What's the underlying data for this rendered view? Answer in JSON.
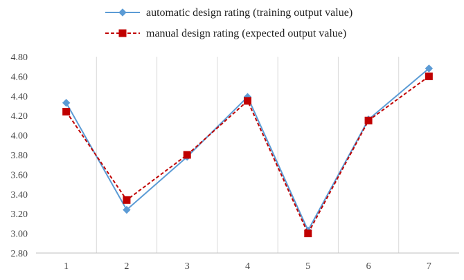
{
  "chart_data": {
    "type": "line",
    "title": "",
    "xlabel": "",
    "ylabel": "",
    "categories": [
      "1",
      "2",
      "3",
      "4",
      "5",
      "6",
      "7"
    ],
    "y_ticks": [
      "2.80",
      "3.00",
      "3.20",
      "3.40",
      "3.60",
      "3.80",
      "4.00",
      "4.20",
      "4.40",
      "4.60",
      "4.80"
    ],
    "ylim": [
      2.8,
      4.8
    ],
    "grid": "vertical",
    "legend_position": "top",
    "series": [
      {
        "name": "automatic design rating (training output value)",
        "values": [
          4.33,
          3.24,
          3.78,
          4.39,
          3.03,
          4.16,
          4.68
        ],
        "color": "#5b9bd5",
        "line_style": "solid",
        "marker": "diamond"
      },
      {
        "name": "manual design rating (expected output value)",
        "values": [
          4.24,
          3.34,
          3.8,
          4.35,
          3.0,
          4.15,
          4.6
        ],
        "color": "#c00000",
        "line_style": "dashed",
        "marker": "square"
      }
    ]
  }
}
